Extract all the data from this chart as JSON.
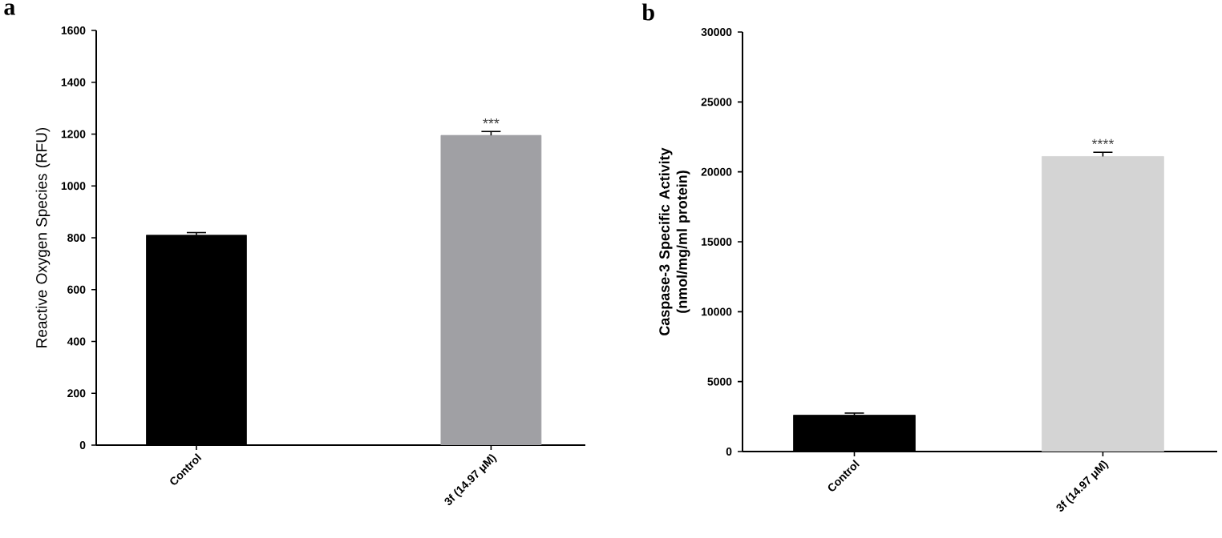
{
  "chart_data": [
    {
      "type": "bar",
      "title": "a",
      "ylabel": "Reactive Oxygen Species (RFU)",
      "categories": [
        "Control",
        "3f (14.97 μM)"
      ],
      "values": [
        810,
        1195
      ],
      "errors": [
        10,
        15
      ],
      "colors": [
        "#000000",
        "#a0a0a4"
      ],
      "ylim": [
        0,
        1600
      ],
      "yticks": [
        0,
        200,
        400,
        600,
        800,
        1000,
        1200,
        1400,
        1600
      ],
      "annotations": [
        {
          "text": "***",
          "x": "3f (14.97 μM)",
          "y": 1215
        }
      ]
    },
    {
      "type": "bar",
      "title": "b",
      "ylabel": "Caspase-3 Specific Activity (nmol/mg/ml protein)",
      "categories": [
        "Control",
        "3f (14.97 μM)"
      ],
      "values": [
        2600,
        21100
      ],
      "errors": [
        150,
        300
      ],
      "colors": [
        "#000000",
        "#d4d4d4"
      ],
      "ylim": [
        0,
        30000
      ],
      "yticks": [
        0,
        5000,
        10000,
        15000,
        20000,
        25000,
        30000
      ],
      "annotations": [
        {
          "text": "****",
          "x": "3f (14.97 μM)",
          "y": 21500
        }
      ]
    }
  ]
}
